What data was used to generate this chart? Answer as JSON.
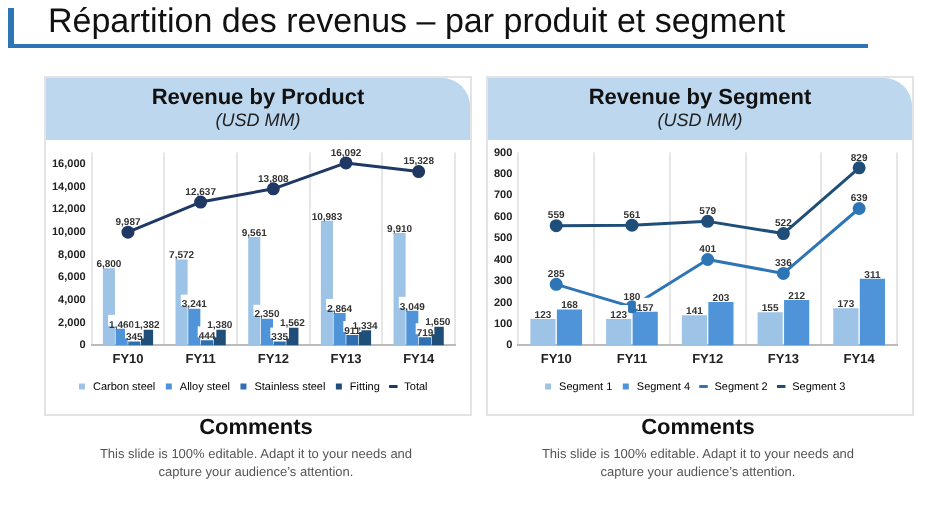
{
  "chart_data": [
    {
      "type": "bar",
      "title": "Revenue by Product",
      "subtitle": "(USD MM)",
      "annotations": [
        "Répartition des revenus – par produit et segment",
        "Comments",
        "This slide is 100% editable. Adapt it to your needs and capture your audience’s attention."
      ],
      "categories": [
        "FY10",
        "FY11",
        "FY12",
        "FY13",
        "FY14"
      ],
      "series": [
        {
          "name": "Carbon steel",
          "color": "#9dc3e6",
          "values": [
            6800,
            7572,
            9561,
            10983,
            9910
          ],
          "value_labels": [
            "6,800",
            "7,572",
            "9,561",
            "10,983",
            "9,910"
          ]
        },
        {
          "name": "Alloy steel",
          "color": "#4f94d8",
          "values": [
            1460,
            3241,
            2350,
            2864,
            3049
          ],
          "value_labels": [
            "1,460",
            "3,241",
            "2,350",
            "2,864",
            "3,049"
          ]
        },
        {
          "name": "Stainless steel",
          "color": "#2e6fb0",
          "values": [
            345,
            444,
            335,
            911,
            719
          ],
          "value_labels": [
            "345",
            "444",
            "335",
            "911",
            "719"
          ]
        },
        {
          "name": "Fitting",
          "color": "#1f4e79",
          "values": [
            1382,
            1380,
            1562,
            1334,
            1650
          ],
          "value_labels": [
            "1,382",
            "1,380",
            "1,562",
            "1,334",
            "1,650"
          ]
        },
        {
          "name": "Total",
          "type": "line",
          "color": "#1f3864",
          "values": [
            9987,
            12637,
            13808,
            16092,
            15328
          ],
          "value_labels": [
            "9,987",
            "12,637",
            "13,808",
            "16,092",
            "15,328"
          ]
        }
      ],
      "ylim": [
        0,
        17000
      ],
      "yticks": [
        {
          "value": 0,
          "label": "0"
        },
        {
          "value": 2000,
          "label": "2,000"
        },
        {
          "value": 4000,
          "label": "4,000"
        },
        {
          "value": 6000,
          "label": "6,000"
        },
        {
          "value": 8000,
          "label": "8,000"
        },
        {
          "value": 10000,
          "label": "10,000"
        },
        {
          "value": 12000,
          "label": "12,000"
        },
        {
          "value": 14000,
          "label": "14,000"
        },
        {
          "value": 16000,
          "label": "16,000"
        }
      ],
      "grid": "x",
      "legend": "bottom",
      "marker": "circle"
    },
    {
      "type": "bar",
      "title": "Revenue by Segment",
      "subtitle": "(USD MM)",
      "annotations": [
        "Comments",
        "This slide is 100% editable. Adapt it to your needs and capture your audience’s attention."
      ],
      "categories": [
        "FY10",
        "FY11",
        "FY12",
        "FY13",
        "FY14"
      ],
      "series": [
        {
          "name": "Segment 1",
          "color": "#9dc3e6",
          "values": [
            123,
            123,
            141,
            155,
            173
          ]
        },
        {
          "name": "Segment 4",
          "color": "#4f94d8",
          "values": [
            168,
            157,
            203,
            212,
            311
          ]
        },
        {
          "name": "Segment 2",
          "type": "line",
          "color": "#2e75b6",
          "values": [
            285,
            180,
            401,
            336,
            639
          ]
        },
        {
          "name": "Segment 3",
          "type": "line",
          "color": "#1f4e79",
          "values": [
            559,
            561,
            579,
            522,
            829
          ]
        }
      ],
      "ylim": [
        0,
        900
      ],
      "yticks": [
        0,
        100,
        200,
        300,
        400,
        500,
        600,
        700,
        800,
        900
      ],
      "grid": "x",
      "legend": "bottom",
      "marker": "circle",
      "data_labels": true
    }
  ]
}
